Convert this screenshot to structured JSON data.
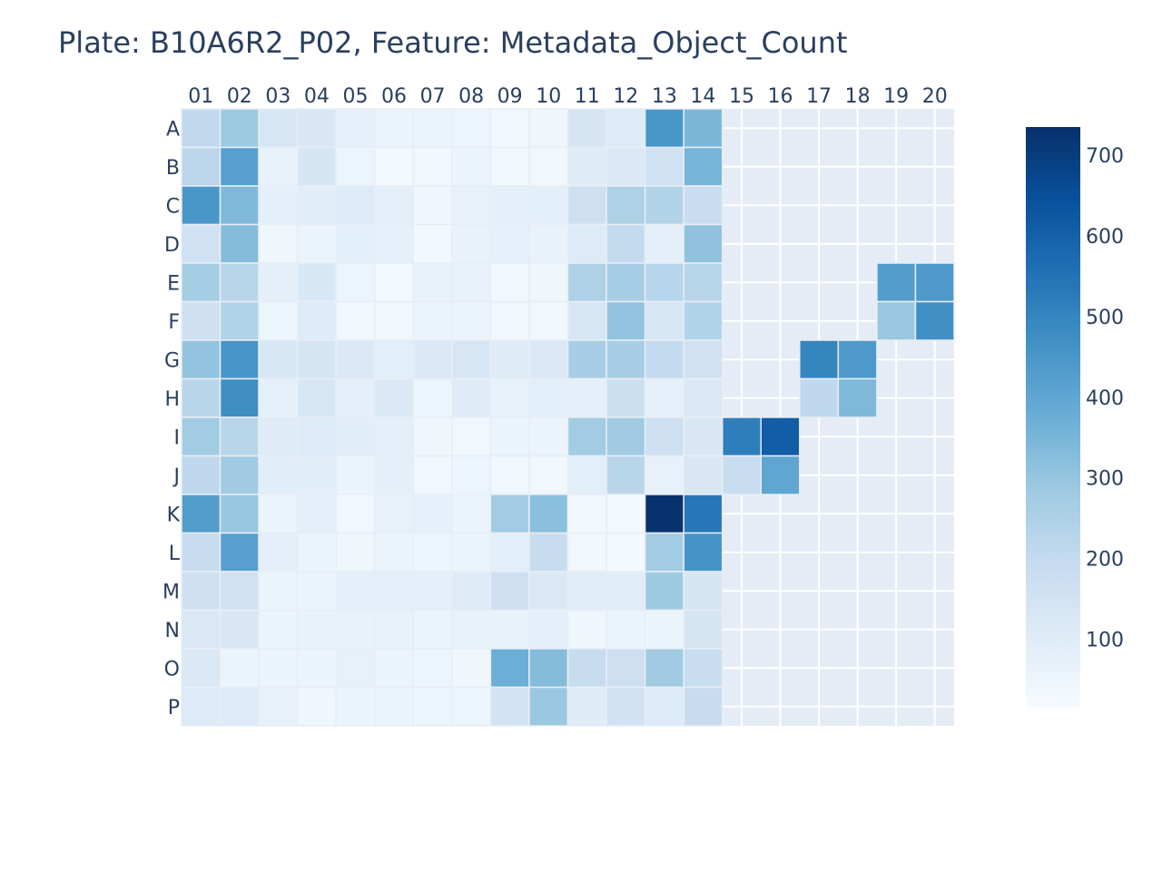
{
  "chart_data": {
    "type": "heatmap",
    "title": "Plate: B10A6R2_P02, Feature: Metadata_Object_Count",
    "x_categories": [
      "01",
      "02",
      "03",
      "04",
      "05",
      "06",
      "07",
      "08",
      "09",
      "10",
      "11",
      "12",
      "13",
      "14",
      "15",
      "16",
      "17",
      "18",
      "19",
      "20"
    ],
    "y_categories": [
      "A",
      "B",
      "C",
      "D",
      "E",
      "F",
      "G",
      "H",
      "I",
      "J",
      "K",
      "L",
      "M",
      "N",
      "O",
      "P"
    ],
    "values": [
      [
        205,
        285,
        135,
        125,
        75,
        60,
        55,
        50,
        40,
        45,
        140,
        110,
        450,
        345,
        null,
        null,
        null,
        null,
        null,
        null
      ],
      [
        220,
        420,
        65,
        140,
        50,
        25,
        40,
        55,
        40,
        35,
        100,
        115,
        160,
        355,
        null,
        null,
        null,
        null,
        null,
        null
      ],
      [
        450,
        340,
        85,
        95,
        110,
        85,
        45,
        70,
        80,
        90,
        170,
        250,
        240,
        185,
        null,
        null,
        null,
        null,
        null,
        null
      ],
      [
        160,
        330,
        45,
        55,
        90,
        75,
        30,
        65,
        75,
        65,
        110,
        200,
        80,
        310,
        null,
        null,
        null,
        null,
        null,
        null
      ],
      [
        270,
        225,
        85,
        130,
        50,
        25,
        65,
        70,
        35,
        45,
        250,
        270,
        230,
        225,
        null,
        null,
        null,
        null,
        430,
        440
      ],
      [
        165,
        240,
        50,
        110,
        40,
        40,
        60,
        60,
        35,
        40,
        135,
        305,
        135,
        240,
        null,
        null,
        null,
        null,
        290,
        470
      ],
      [
        305,
        455,
        130,
        140,
        115,
        90,
        115,
        135,
        100,
        120,
        265,
        265,
        200,
        160,
        null,
        null,
        500,
        440,
        null,
        null
      ],
      [
        225,
        475,
        75,
        135,
        85,
        120,
        50,
        100,
        70,
        90,
        85,
        175,
        75,
        120,
        null,
        null,
        210,
        340,
        null,
        null
      ],
      [
        275,
        225,
        100,
        110,
        95,
        80,
        45,
        40,
        60,
        60,
        275,
        280,
        170,
        125,
        520,
        610,
        null,
        null,
        null,
        null
      ],
      [
        210,
        280,
        95,
        95,
        55,
        80,
        35,
        50,
        40,
        35,
        90,
        225,
        70,
        125,
        185,
        400,
        null,
        null,
        null,
        null
      ],
      [
        430,
        295,
        60,
        85,
        35,
        70,
        75,
        55,
        275,
        320,
        30,
        25,
        730,
        540,
        null,
        null,
        null,
        null,
        null,
        null
      ],
      [
        190,
        420,
        85,
        60,
        45,
        55,
        50,
        55,
        90,
        190,
        35,
        25,
        275,
        460,
        null,
        null,
        null,
        null,
        null,
        null
      ],
      [
        165,
        160,
        60,
        55,
        85,
        85,
        80,
        105,
        170,
        120,
        95,
        95,
        285,
        140,
        null,
        null,
        null,
        null,
        null,
        null
      ],
      [
        120,
        125,
        60,
        65,
        65,
        65,
        55,
        65,
        65,
        85,
        45,
        60,
        55,
        140,
        null,
        null,
        null,
        null,
        null,
        null
      ],
      [
        120,
        60,
        60,
        55,
        70,
        55,
        50,
        45,
        375,
        330,
        190,
        170,
        280,
        185,
        null,
        null,
        null,
        null,
        null,
        null
      ],
      [
        110,
        110,
        70,
        45,
        60,
        60,
        50,
        50,
        150,
        290,
        100,
        160,
        110,
        190,
        null,
        null,
        null,
        null,
        null,
        null
      ]
    ],
    "zmin": 15,
    "zmax": 735,
    "colorscale": "Blues",
    "colorbar_ticks": [
      100,
      200,
      300,
      400,
      500,
      600,
      700
    ],
    "x_axis_side": "top",
    "y_axis_reversed": true,
    "grid": true,
    "missing_color": "#e5ecf6",
    "grid_color": "#ffffff",
    "text_color": "#2a3f5f"
  }
}
